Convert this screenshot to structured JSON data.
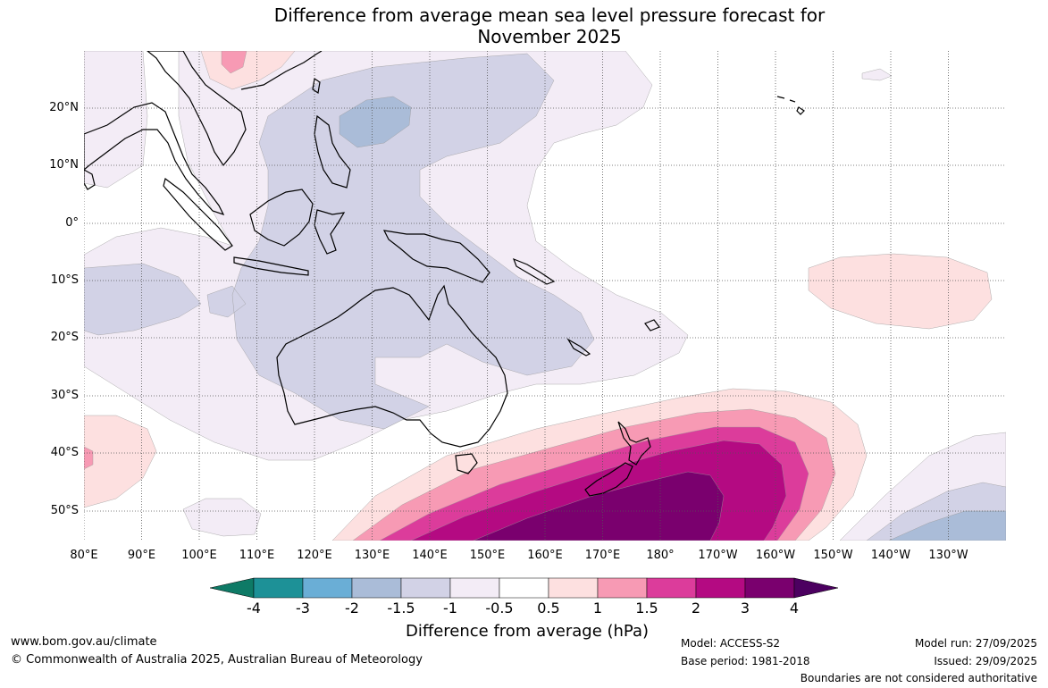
{
  "title": {
    "line1": "Difference from average mean sea level pressure forecast for",
    "line2": "November 2025"
  },
  "map": {
    "lat_labels": [
      "20°N",
      "10°N",
      "0°",
      "10°S",
      "20°S",
      "30°S",
      "40°S",
      "50°S"
    ],
    "lon_labels": [
      "80°E",
      "90°E",
      "100°E",
      "110°E",
      "120°E",
      "130°E",
      "140°E",
      "150°E",
      "160°E",
      "170°E",
      "180°",
      "170°W",
      "160°W",
      "150°W",
      "140°W",
      "130°W"
    ],
    "colors": {
      "land_outline": "#000000",
      "grid": "#555555",
      "neg_0_5": "#f3ecf6",
      "neg_1": "#d2d2e6",
      "neg_1_5": "#aabcd8",
      "pos_0_5": "#fde0e0",
      "pos_1": "#f79ab4",
      "pos_1_5": "#dc3c9b",
      "pos_2": "#b40a82",
      "pos_3": "#7a006e"
    }
  },
  "colorbar": {
    "ticks": [
      "-4",
      "-3",
      "-2",
      "-1.5",
      "-1",
      "-0.5",
      "0.5",
      "1",
      "1.5",
      "2",
      "3",
      "4"
    ],
    "colors": [
      "#0e7a66",
      "#1d9197",
      "#6aaed6",
      "#aabcd8",
      "#d2d2e6",
      "#f3ecf6",
      "#ffffff",
      "#fde0e0",
      "#f79ab4",
      "#dc3c9b",
      "#b40a82",
      "#7a006e",
      "#4c0060"
    ],
    "label": "Difference from average (hPa)"
  },
  "footer": {
    "url": "www.bom.gov.au/climate",
    "copyright": "© Commonwealth of Australia 2025, Australian Bureau of Meteorology",
    "model": "Model: ACCESS-S2",
    "base_period": "Base period: 1981-2018",
    "model_run": "Model run: 27/09/2025",
    "issued": "Issued: 29/09/2025",
    "disclaimer": "Boundaries are not considered authoritative"
  }
}
